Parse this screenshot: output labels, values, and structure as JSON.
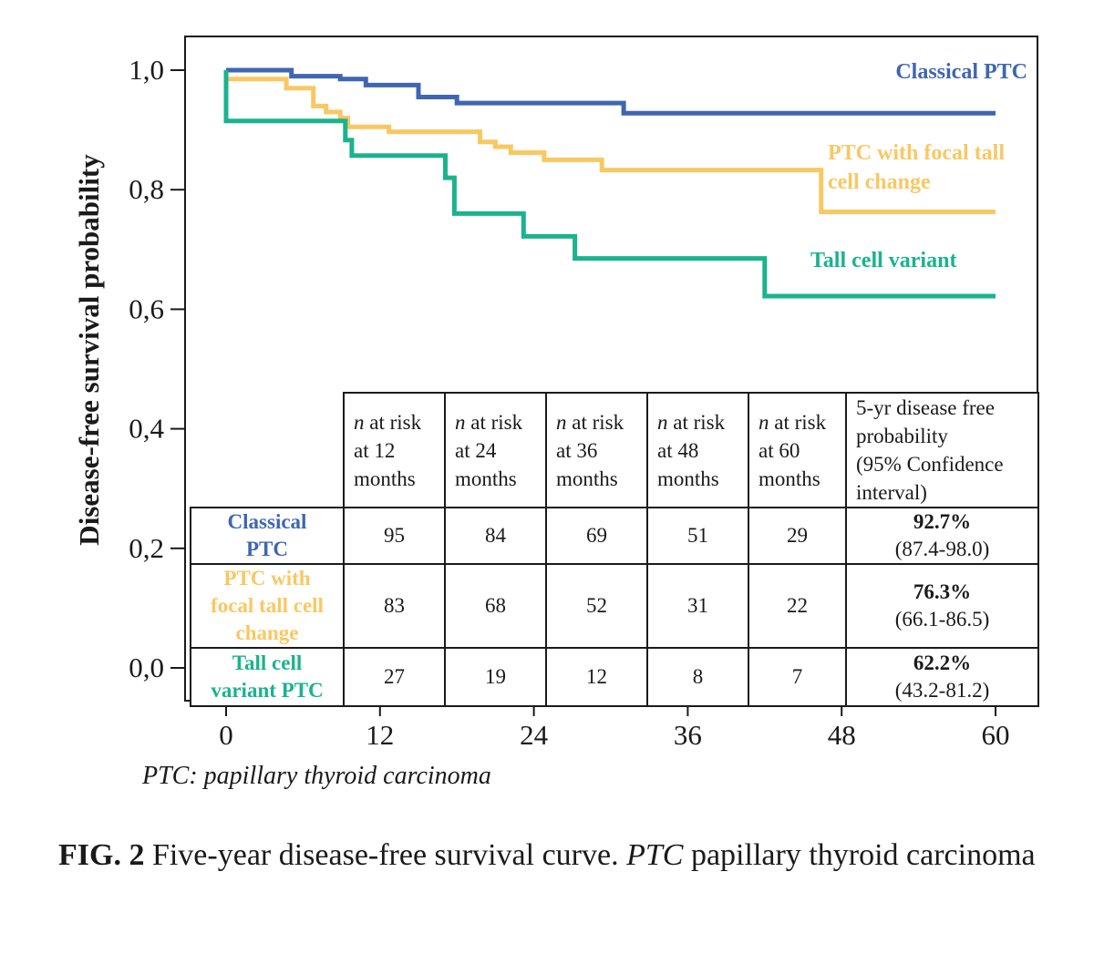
{
  "chart_data": {
    "type": "line",
    "step": true,
    "ylabel": "Disease-free survival probability",
    "xlabel": "",
    "xlim": [
      0,
      60
    ],
    "ylim": [
      0,
      1
    ],
    "x_ticks": [
      "0",
      "12",
      "24",
      "36",
      "48",
      "60"
    ],
    "x_tick_values": [
      0,
      12,
      24,
      36,
      48,
      60
    ],
    "y_ticks": [
      "0,0",
      "0,2",
      "0,4",
      "0,6",
      "0,8",
      "1,0"
    ],
    "y_tick_values": [
      0,
      0.2,
      0.4,
      0.6,
      0.8,
      1.0
    ],
    "series": [
      {
        "name": "Classical PTC",
        "color": "#3f66b0",
        "points": [
          [
            0,
            1.0
          ],
          [
            5.1,
            1.0
          ],
          [
            5.1,
            0.99
          ],
          [
            8.9,
            0.99
          ],
          [
            8.9,
            0.985
          ],
          [
            10.9,
            0.985
          ],
          [
            10.9,
            0.975
          ],
          [
            15,
            0.975
          ],
          [
            15,
            0.955
          ],
          [
            18,
            0.955
          ],
          [
            18,
            0.945
          ],
          [
            31,
            0.945
          ],
          [
            31,
            0.928
          ],
          [
            60,
            0.928
          ]
        ]
      },
      {
        "name": "PTC with focal tall cell change",
        "color": "#f9c863",
        "points": [
          [
            0,
            0.985
          ],
          [
            4.7,
            0.985
          ],
          [
            4.7,
            0.97
          ],
          [
            6.8,
            0.97
          ],
          [
            6.8,
            0.94
          ],
          [
            7.8,
            0.94
          ],
          [
            7.8,
            0.93
          ],
          [
            8.9,
            0.93
          ],
          [
            8.9,
            0.92
          ],
          [
            9.5,
            0.92
          ],
          [
            9.5,
            0.905
          ],
          [
            12.7,
            0.905
          ],
          [
            12.7,
            0.897
          ],
          [
            19.8,
            0.897
          ],
          [
            19.8,
            0.88
          ],
          [
            21,
            0.88
          ],
          [
            21,
            0.872
          ],
          [
            22.2,
            0.872
          ],
          [
            22.2,
            0.862
          ],
          [
            24.8,
            0.862
          ],
          [
            24.8,
            0.85
          ],
          [
            29.3,
            0.85
          ],
          [
            29.3,
            0.833
          ],
          [
            46.4,
            0.833
          ],
          [
            46.4,
            0.763
          ],
          [
            60,
            0.763
          ]
        ]
      },
      {
        "name": "Tall cell variant",
        "color": "#1ab38e",
        "points": [
          [
            0,
            1.0
          ],
          [
            0,
            0.915
          ],
          [
            9.3,
            0.915
          ],
          [
            9.3,
            0.883
          ],
          [
            9.8,
            0.883
          ],
          [
            9.8,
            0.857
          ],
          [
            17.1,
            0.857
          ],
          [
            17.1,
            0.82
          ],
          [
            17.8,
            0.82
          ],
          [
            17.8,
            0.76
          ],
          [
            23.2,
            0.76
          ],
          [
            23.2,
            0.722
          ],
          [
            27.2,
            0.722
          ],
          [
            27.2,
            0.685
          ],
          [
            42,
            0.685
          ],
          [
            42,
            0.622
          ],
          [
            60,
            0.622
          ]
        ]
      }
    ],
    "table": {
      "headers": [
        "n at risk at 12 months",
        "n at risk at 24 months",
        "n at risk at 36 months",
        "n at risk at 48 months",
        "n at risk at 60 months",
        "5-yr disease free probability (95% Confidence interval)"
      ],
      "rows": [
        {
          "group": "Classical PTC",
          "values": [
            "95",
            "84",
            "69",
            "51",
            "29"
          ],
          "prob": "92.7%",
          "ci": "(87.4-98.0)"
        },
        {
          "group": "PTC with focal tall cell change",
          "values": [
            "83",
            "68",
            "52",
            "31",
            "22"
          ],
          "prob": "76.3%",
          "ci": "(66.1-86.5)"
        },
        {
          "group": "Tall cell variant PTC",
          "values": [
            "27",
            "19",
            "12",
            "8",
            "7"
          ],
          "prob": "62.2%",
          "ci": "(43.2-81.2)"
        }
      ]
    }
  },
  "labels": {
    "series_label_classical": "Classical PTC",
    "series_label_focal_1": "PTC with focal tall",
    "series_label_focal_2": "cell change",
    "series_label_tall": "Tall cell variant",
    "table_header": {
      "n": "n",
      "at_risk": " at risk",
      "c12": "at 12",
      "c24": "at 24",
      "c36": "at 36",
      "c48": "at 48",
      "c60": "at 60",
      "months": "months",
      "prob_line1": "5-yr disease free",
      "prob_line2": "probability",
      "prob_line3": "(95% Confidence",
      "prob_line4": "interval)"
    },
    "row_classical_1": "Classical",
    "row_classical_2": "PTC",
    "row_focal_1": "PTC with",
    "row_focal_2": "focal tall cell",
    "row_focal_3": "change",
    "row_tall_1": "Tall cell",
    "row_tall_2": "variant PTC"
  },
  "footnote": "PTC: papillary thyroid carcinoma",
  "caption": {
    "fig_label": "FIG. 2",
    "text_1": " Five-year disease-free survival curve. ",
    "abbr": "PTC",
    "text_2": " papillary thyroid carcinoma"
  },
  "colors": {
    "classical": "#3f66b0",
    "focal": "#f9c863",
    "tall": "#1ab38e",
    "axis": "#1a1a1a"
  }
}
